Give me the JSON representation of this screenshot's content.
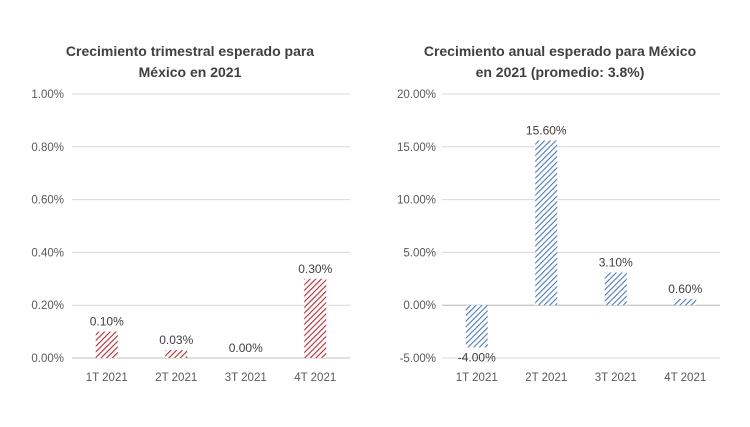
{
  "chart_data": [
    {
      "type": "bar",
      "title": [
        "Crecimiento trimestral esperado para",
        "México en 2021"
      ],
      "categories": [
        "1T 2021",
        "2T 2021",
        "3T 2021",
        "4T 2021"
      ],
      "values": [
        0.1,
        0.03,
        0.0,
        0.3
      ],
      "data_labels": [
        "0.10%",
        "0.03%",
        "0.00%",
        "0.30%"
      ],
      "ylim": [
        0,
        1.0
      ],
      "yticks": [
        0.0,
        0.2,
        0.4,
        0.6,
        0.8,
        1.0
      ],
      "ytick_labels": [
        "0.00%",
        "0.20%",
        "0.40%",
        "0.60%",
        "0.80%",
        "1.00%"
      ],
      "grid": true,
      "bar_color": "#c0282f",
      "pattern": "diagonal-hatch"
    },
    {
      "type": "bar",
      "title": [
        "Crecimiento anual esperado para México",
        "en 2021 (promedio: 3.8%)"
      ],
      "categories": [
        "1T 2021",
        "2T 2021",
        "3T 2021",
        "4T 2021"
      ],
      "values": [
        -4.0,
        15.6,
        3.1,
        0.6
      ],
      "data_labels": [
        "-4.00%",
        "15.60%",
        "3.10%",
        "0.60%"
      ],
      "ylim": [
        -5,
        20
      ],
      "yticks": [
        -5,
        0,
        5,
        10,
        15,
        20
      ],
      "ytick_labels": [
        "-5.00%",
        "0.00%",
        "5.00%",
        "10.00%",
        "15.00%",
        "20.00%"
      ],
      "grid": true,
      "bar_color": "#4a7ac8",
      "pattern": "diagonal-hatch"
    }
  ]
}
